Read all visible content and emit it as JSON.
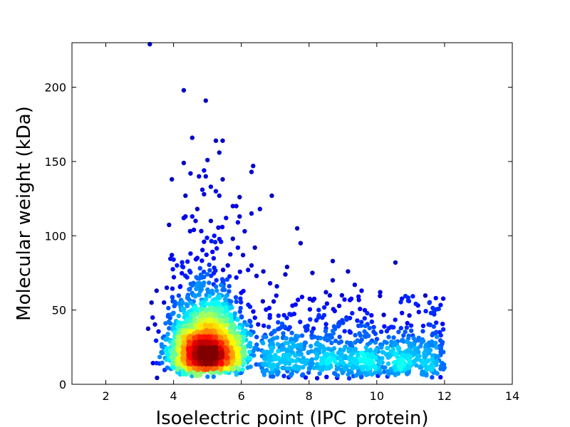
{
  "chart_data": {
    "type": "scatter",
    "title": "",
    "xlabel": "Isoelectric point (IPC_protein)",
    "ylabel": "Molecular weight (kDa)",
    "xlim": [
      1,
      14
    ],
    "ylim": [
      0,
      230
    ],
    "xticks": [
      2,
      4,
      6,
      8,
      10,
      12,
      14
    ],
    "yticks": [
      0,
      50,
      100,
      150,
      200
    ],
    "xtick_labels": [
      "2",
      "4",
      "6",
      "8",
      "10",
      "12",
      "14"
    ],
    "ytick_labels": [
      "0",
      "50",
      "100",
      "150",
      "200"
    ],
    "grid": false,
    "colormap": [
      "#00008f",
      "#0000ff",
      "#0080ff",
      "#00ffff",
      "#80ff80",
      "#ffff00",
      "#ff8000",
      "#ff0000",
      "#800000"
    ],
    "point_color_encoding": "point density (jet colormap)",
    "points": [
      [
        3.3,
        229
      ],
      [
        4.3,
        198
      ],
      [
        4.95,
        191
      ],
      [
        4.55,
        166
      ],
      [
        5.25,
        164
      ],
      [
        5.45,
        164
      ],
      [
        5.35,
        156
      ],
      [
        5.0,
        151
      ],
      [
        4.9,
        144
      ],
      [
        6.35,
        147
      ],
      [
        6.3,
        143
      ],
      [
        4.5,
        142
      ],
      [
        4.3,
        149
      ],
      [
        3.95,
        138
      ],
      [
        4.75,
        140
      ],
      [
        4.95,
        140
      ],
      [
        5.1,
        133
      ],
      [
        5.45,
        138
      ],
      [
        4.85,
        131
      ],
      [
        4.9,
        128
      ],
      [
        5.25,
        130
      ],
      [
        5.35,
        127
      ],
      [
        4.35,
        127
      ],
      [
        5.95,
        126
      ],
      [
        6.9,
        127
      ],
      [
        4.7,
        118
      ],
      [
        5.85,
        120
      ],
      [
        5.75,
        120
      ],
      [
        5.95,
        113
      ],
      [
        6.55,
        118
      ],
      [
        6.3,
        115
      ],
      [
        4.35,
        113
      ],
      [
        4.3,
        112
      ],
      [
        4.55,
        113
      ],
      [
        4.65,
        110
      ],
      [
        5.55,
        112
      ],
      [
        5.9,
        109
      ],
      [
        7.65,
        105
      ],
      [
        6.1,
        103
      ],
      [
        7.75,
        95
      ],
      [
        6.4,
        92
      ],
      [
        5.2,
        100
      ],
      [
        5.1,
        110
      ],
      [
        3.95,
        87
      ],
      [
        4.0,
        84
      ],
      [
        4.5,
        88
      ],
      [
        4.9,
        96
      ],
      [
        5.4,
        96
      ],
      [
        5.75,
        98
      ],
      [
        6.05,
        87
      ],
      [
        6.45,
        73
      ],
      [
        6.65,
        76
      ],
      [
        6.3,
        80
      ],
      [
        8.7,
        83
      ],
      [
        10.55,
        82
      ],
      [
        9.15,
        76
      ],
      [
        7.35,
        79
      ],
      [
        7.3,
        74
      ],
      [
        8.1,
        75
      ],
      [
        8.7,
        70
      ],
      [
        9.35,
        67
      ],
      [
        9.55,
        63
      ],
      [
        10.1,
        62
      ],
      [
        10.95,
        56
      ],
      [
        8.5,
        62
      ],
      [
        7.05,
        66
      ],
      [
        6.85,
        68
      ],
      [
        3.5,
        63
      ],
      [
        3.8,
        65
      ],
      [
        3.35,
        55
      ],
      [
        4.1,
        80
      ],
      [
        4.4,
        72
      ],
      [
        5.6,
        80
      ],
      [
        6.2,
        77
      ],
      [
        4.2,
        66
      ],
      [
        5.9,
        92
      ],
      [
        4.6,
        104
      ]
    ]
  }
}
